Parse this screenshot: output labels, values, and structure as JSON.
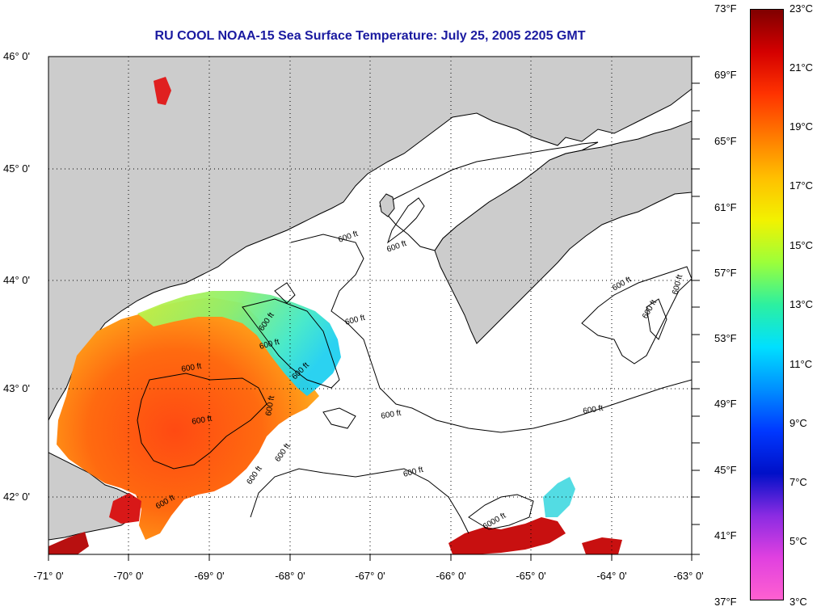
{
  "title": "RU COOL  NOAA-15  Sea Surface Temperature:  July 25, 2005 2205 GMT",
  "map": {
    "lon_labels": [
      "-71° 0'",
      "-70° 0'",
      "-69° 0'",
      "-68° 0'",
      "-67° 0'",
      "-66° 0'",
      "-65° 0'",
      "-64° 0'",
      "-63° 0'"
    ],
    "lat_labels": [
      "46° 0'",
      "45° 0'",
      "44° 0'",
      "43° 0'",
      "42° 0'"
    ],
    "contour_labels": [
      "600 ft",
      "600 ft",
      "600 ft",
      "600 ft",
      "600 ft",
      "600 ft",
      "600 ft",
      "600 ft",
      "600 ft",
      "600 ft",
      "600 ft",
      "600 ft",
      "600 ft",
      "600 ft",
      "6000 ft"
    ],
    "colors": {
      "land": "#cccccc",
      "water": "#ffffff",
      "contour": "#000000",
      "title": "#1a1aa0"
    }
  },
  "colorbar": {
    "fahrenheit": [
      "73°F",
      "69°F",
      "65°F",
      "61°F",
      "57°F",
      "53°F",
      "49°F",
      "45°F",
      "41°F",
      "37°F"
    ],
    "celsius": [
      "23°C",
      "21°C",
      "19°C",
      "17°C",
      "15°C",
      "13°C",
      "11°C",
      "9°C",
      "7°C",
      "5°C",
      "3°C"
    ],
    "gradient": [
      "#7f0000",
      "#d40000",
      "#ff3300",
      "#ff7a00",
      "#ffc000",
      "#f2f200",
      "#9cff3a",
      "#2cf0a0",
      "#00e0ff",
      "#0090ff",
      "#0038ff",
      "#0010c8",
      "#8a2be2",
      "#e040e0",
      "#ff60d0"
    ]
  }
}
